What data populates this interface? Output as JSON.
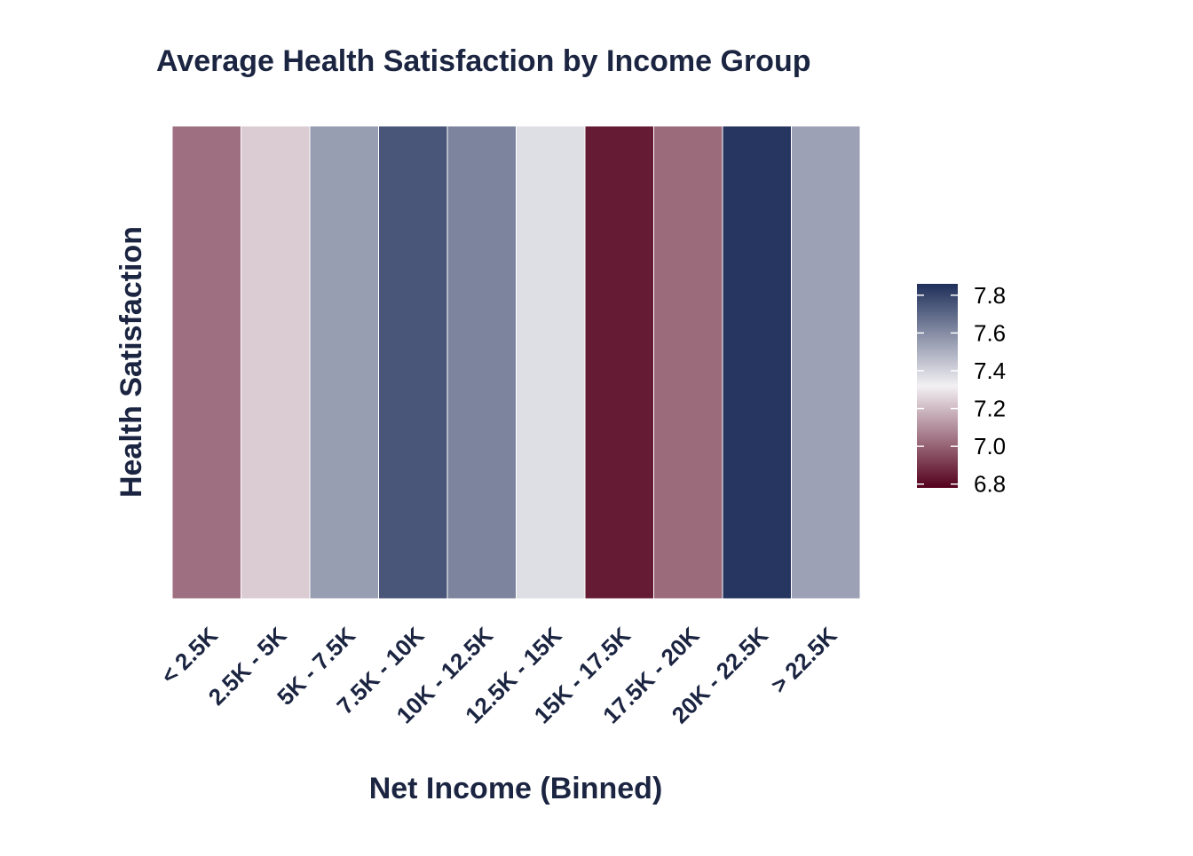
{
  "chart_data": {
    "type": "heatmap",
    "title": "Average Health Satisfaction by Income Group",
    "xlabel": "Net Income (Binned)",
    "ylabel": "Health Satisfaction",
    "categories": [
      "< 2.5K",
      "2.5K - 5K",
      "5K - 7.5K",
      "7.5K - 10K",
      "10K - 12.5K",
      "12.5K - 15K",
      "15K - 17.5K",
      "17.5K - 20K",
      "20K - 22.5K",
      "> 22.5K"
    ],
    "values": [
      7.03,
      7.24,
      7.55,
      7.75,
      7.62,
      7.37,
      6.84,
      7.02,
      7.84,
      7.54
    ],
    "legend": {
      "position": "right",
      "ticks": [
        "6.8",
        "7.0",
        "7.2",
        "7.4",
        "7.6",
        "7.8"
      ],
      "tick_values": [
        6.8,
        7.0,
        7.2,
        7.4,
        7.6,
        7.8
      ],
      "range": [
        6.78,
        7.86
      ]
    },
    "colors": {
      "low": "#55001c",
      "mid": "#f2f0f3",
      "high": "#1f2f5a",
      "text": "#1b2541",
      "tile_border": "#ffffff"
    },
    "grid": false
  }
}
